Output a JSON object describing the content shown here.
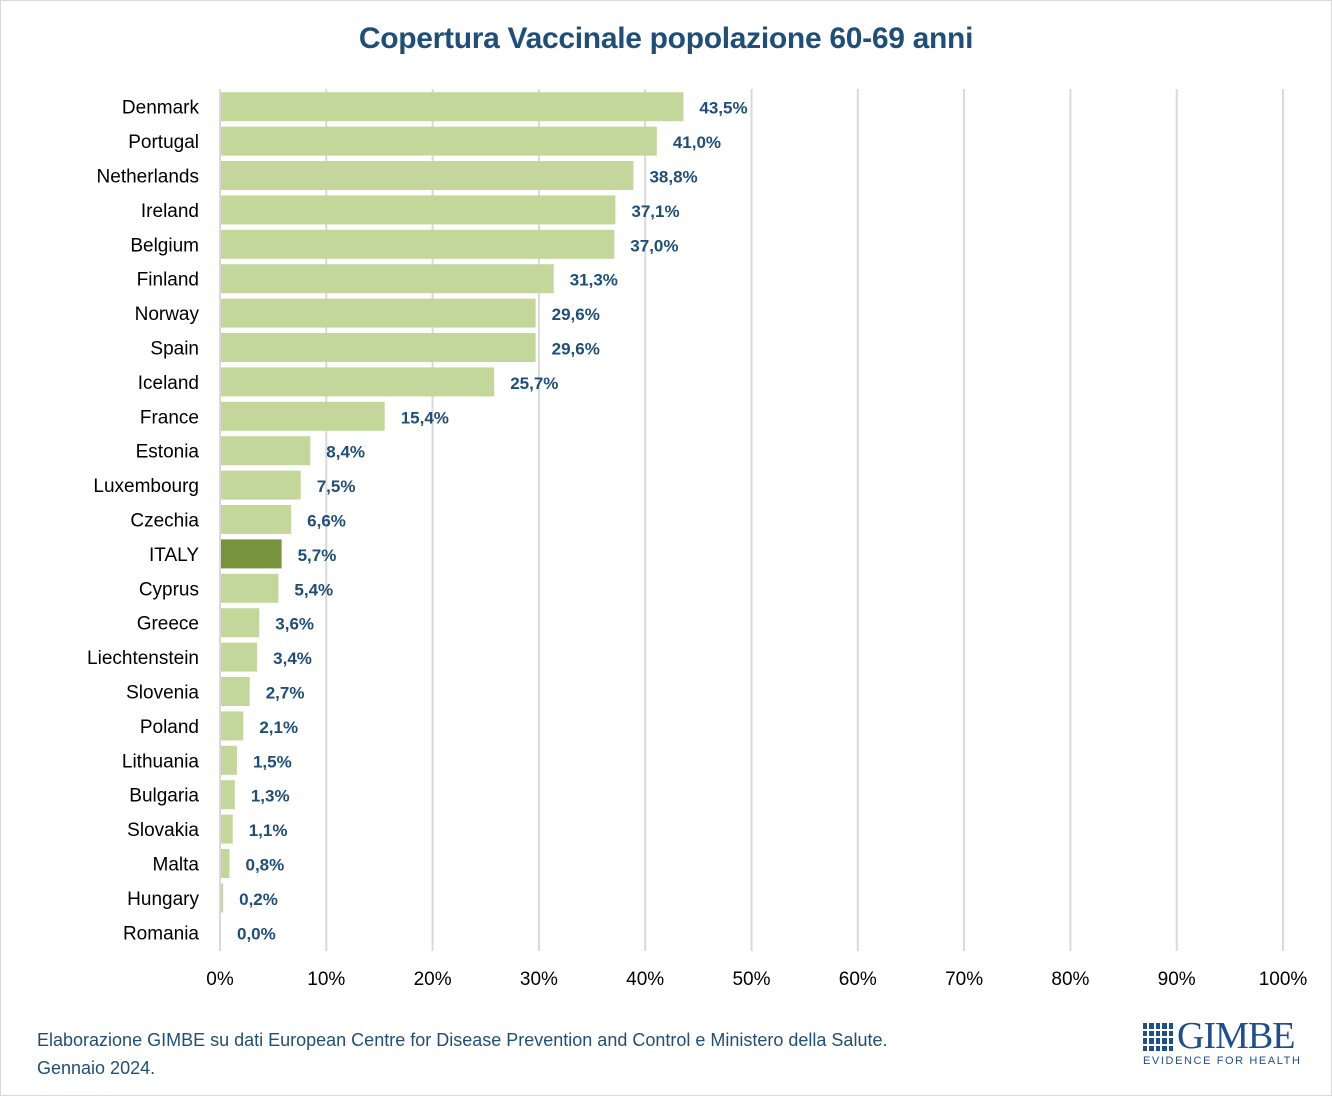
{
  "chart_data": {
    "type": "bar",
    "orientation": "horizontal",
    "title": "Copertura Vaccinale popolazione 60-69 anni",
    "xlabel": "",
    "ylabel": "",
    "xlim": [
      0,
      100
    ],
    "x_ticks": [
      "0%",
      "10%",
      "20%",
      "30%",
      "40%",
      "50%",
      "60%",
      "70%",
      "80%",
      "90%",
      "100%"
    ],
    "grid": true,
    "legend": "none",
    "categories": [
      "Denmark",
      "Portugal",
      "Netherlands",
      "Ireland",
      "Belgium",
      "Finland",
      "Norway",
      "Spain",
      "Iceland",
      "France",
      "Estonia",
      "Luxembourg",
      "Czechia",
      "ITALY",
      "Cyprus",
      "Greece",
      "Liechtenstein",
      "Slovenia",
      "Poland",
      "Lithuania",
      "Bulgaria",
      "Slovakia",
      "Malta",
      "Hungary",
      "Romania"
    ],
    "values": [
      43.5,
      41.0,
      38.8,
      37.1,
      37.0,
      31.3,
      29.6,
      29.6,
      25.7,
      15.4,
      8.4,
      7.5,
      6.6,
      5.7,
      5.4,
      3.6,
      3.4,
      2.7,
      2.1,
      1.5,
      1.3,
      1.1,
      0.8,
      0.2,
      0.0
    ],
    "value_labels": [
      "43,5%",
      "41,0%",
      "38,8%",
      "37,1%",
      "37,0%",
      "31,3%",
      "29,6%",
      "29,6%",
      "25,7%",
      "15,4%",
      "8,4%",
      "7,5%",
      "6,6%",
      "5,7%",
      "5,4%",
      "3,6%",
      "3,4%",
      "2,7%",
      "2,1%",
      "1,5%",
      "1,3%",
      "1,1%",
      "0,8%",
      "0,2%",
      "0,0%"
    ],
    "highlight": "ITALY",
    "colors": {
      "bar": "#c4d79b",
      "highlight": "#77933c",
      "label": "#1f4e79",
      "grid": "#d9d9d9"
    }
  },
  "footer": {
    "line1": "Elaborazione GIMBE su dati European Centre for Disease Prevention and Control e Ministero della Salute.",
    "line2": "Gennaio 2024."
  },
  "logo": {
    "name": "GIMBE",
    "tagline": "EVIDENCE FOR HEALTH"
  }
}
